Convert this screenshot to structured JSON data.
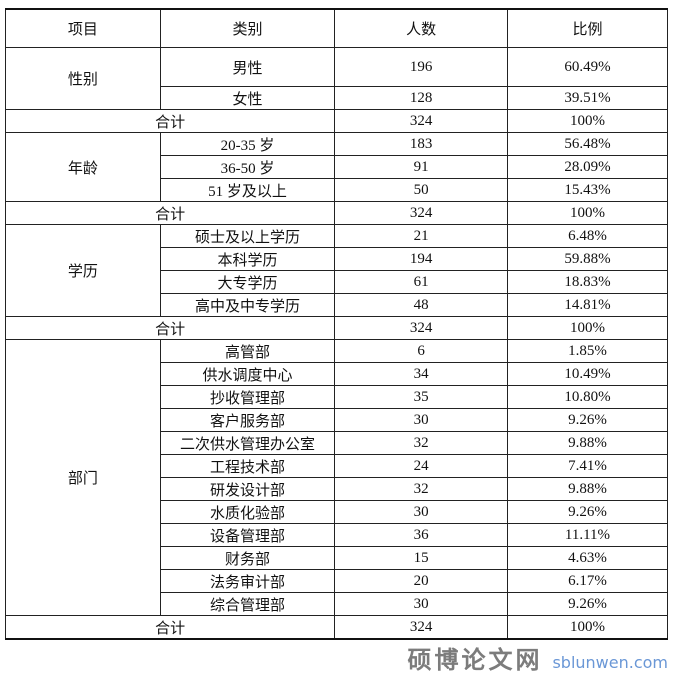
{
  "headers": [
    "项目",
    "类别",
    "人数",
    "比例"
  ],
  "groups": [
    {
      "name": "性别",
      "rows": [
        [
          "男性",
          "196",
          "60.49%"
        ],
        [
          "女性",
          "128",
          "39.51%"
        ]
      ],
      "total": [
        "合计",
        "324",
        "100%"
      ]
    },
    {
      "name": "年龄",
      "rows": [
        [
          "20-35 岁",
          "183",
          "56.48%"
        ],
        [
          "36-50 岁",
          "91",
          "28.09%"
        ],
        [
          "51 岁及以上",
          "50",
          "15.43%"
        ]
      ],
      "total": [
        "合计",
        "324",
        "100%"
      ]
    },
    {
      "name": "学历",
      "rows": [
        [
          "硕士及以上学历",
          "21",
          "6.48%"
        ],
        [
          "本科学历",
          "194",
          "59.88%"
        ],
        [
          "大专学历",
          "61",
          "18.83%"
        ],
        [
          "高中及中专学历",
          "48",
          "14.81%"
        ]
      ],
      "total": [
        "合计",
        "324",
        "100%"
      ]
    },
    {
      "name": "部门",
      "rows": [
        [
          "高管部",
          "6",
          "1.85%"
        ],
        [
          "供水调度中心",
          "34",
          "10.49%"
        ],
        [
          "抄收管理部",
          "35",
          "10.80%"
        ],
        [
          "客户服务部",
          "30",
          "9.26%"
        ],
        [
          "二次供水管理办公室",
          "32",
          "9.88%"
        ],
        [
          "工程技术部",
          "24",
          "7.41%"
        ],
        [
          "研发设计部",
          "32",
          "9.88%"
        ],
        [
          "水质化验部",
          "30",
          "9.26%"
        ],
        [
          "设备管理部",
          "36",
          "11.11%"
        ],
        [
          "财务部",
          "15",
          "4.63%"
        ],
        [
          "法务审计部",
          "20",
          "6.17%"
        ],
        [
          "综合管理部",
          "30",
          "9.26%"
        ]
      ],
      "total": [
        "合计",
        "324",
        "100%"
      ]
    }
  ],
  "watermark": {
    "cn": "硕博论文网",
    "url": "sblunwen.com"
  }
}
